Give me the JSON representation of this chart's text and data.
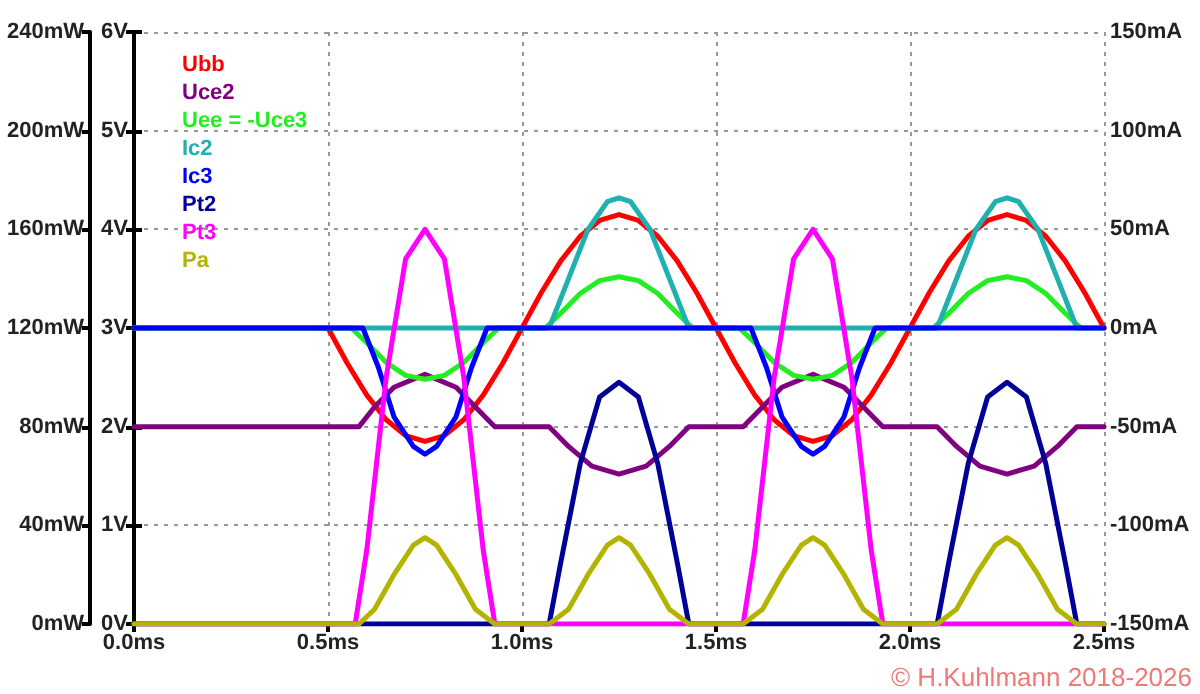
{
  "chart_data": {
    "type": "line",
    "legend": "top left",
    "grid": true,
    "marker": "none",
    "line_style": "solid",
    "xlim": [
      0,
      2.5
    ],
    "xticks": [
      {
        "value": 0,
        "label": "0.0ms"
      },
      {
        "value": 0.5,
        "label": "0.5ms"
      },
      {
        "value": 1,
        "label": "1.0ms"
      },
      {
        "value": 1.5,
        "label": "1.5ms"
      },
      {
        "value": 2,
        "label": "2.0ms"
      },
      {
        "value": 2.5,
        "label": "2.5ms"
      }
    ],
    "ylim": [
      0,
      6
    ],
    "yticks": [
      {
        "value": 0,
        "label": "0V"
      },
      {
        "value": 1,
        "label": "1V"
      },
      {
        "value": 2,
        "label": "2V"
      },
      {
        "value": 3,
        "label": "3V"
      },
      {
        "value": 4,
        "label": "4V"
      },
      {
        "value": 5,
        "label": "5V"
      },
      {
        "value": 6,
        "label": "6V"
      }
    ],
    "y2lim": [
      -150,
      150
    ],
    "y2ticks": [
      {
        "value": -150,
        "label": "-150mA"
      },
      {
        "value": -100,
        "label": "-100mA"
      },
      {
        "value": -50,
        "label": "-50mA"
      },
      {
        "value": 0,
        "label": "0mA"
      },
      {
        "value": 50,
        "label": "50mA"
      },
      {
        "value": 100,
        "label": "100mA"
      },
      {
        "value": 150,
        "label": "150mA"
      }
    ],
    "y3lim": [
      0,
      240
    ],
    "y3ticks": [
      {
        "value": 0,
        "label": "0mW"
      },
      {
        "value": 40,
        "label": "40mW"
      },
      {
        "value": 80,
        "label": "80mW"
      },
      {
        "value": 120,
        "label": "120mW"
      },
      {
        "value": 160,
        "label": "160mW"
      },
      {
        "value": 200,
        "label": "200mW"
      },
      {
        "value": 240,
        "label": "240mW"
      }
    ],
    "annotations": [
      "© H.Kuhlmann 2018-2026"
    ],
    "series": [
      {
        "name": "Ubb",
        "color": "#ff0000",
        "x": [
          0,
          0.5,
          0.55,
          0.6,
          0.65,
          0.7,
          0.75,
          0.8,
          0.85,
          0.9,
          0.95,
          1.0,
          1.05,
          1.1,
          1.15,
          1.2,
          1.25,
          1.3,
          1.35,
          1.4,
          1.45,
          1.5,
          1.55,
          1.6,
          1.65,
          1.7,
          1.75,
          1.8,
          1.85,
          1.9,
          1.95,
          2.0,
          2.05,
          2.1,
          2.15,
          2.2,
          2.25,
          2.3,
          2.35,
          2.4,
          2.45,
          2.5
        ],
        "values": [
          3,
          3,
          2.64,
          2.32,
          2.07,
          1.91,
          1.85,
          1.91,
          2.07,
          2.32,
          2.64,
          3,
          3.36,
          3.68,
          3.93,
          4.09,
          4.15,
          4.09,
          3.93,
          3.68,
          3.36,
          3,
          2.64,
          2.32,
          2.07,
          1.91,
          1.85,
          1.91,
          2.07,
          2.32,
          2.64,
          3,
          3.36,
          3.68,
          3.93,
          4.09,
          4.15,
          4.09,
          3.93,
          3.68,
          3.36,
          3
        ]
      },
      {
        "name": "Uce2",
        "color": "#800080",
        "x": [
          0,
          0.58,
          0.62,
          0.67,
          0.75,
          0.83,
          0.88,
          0.93,
          1.07,
          1.12,
          1.18,
          1.25,
          1.32,
          1.38,
          1.43,
          1.57,
          1.62,
          1.67,
          1.75,
          1.83,
          1.88,
          1.93,
          2.07,
          2.12,
          2.18,
          2.25,
          2.32,
          2.38,
          2.43,
          2.5
        ],
        "values": [
          2,
          2,
          2.2,
          2.4,
          2.53,
          2.4,
          2.2,
          2,
          2,
          1.8,
          1.6,
          1.52,
          1.6,
          1.8,
          2,
          2,
          2.2,
          2.4,
          2.53,
          2.4,
          2.2,
          2,
          2,
          1.8,
          1.6,
          1.52,
          1.6,
          1.8,
          2,
          2
        ]
      },
      {
        "name": "Uee = -Uce3",
        "color": "#22ee22",
        "x": [
          0,
          0.56,
          0.6,
          0.65,
          0.7,
          0.75,
          0.8,
          0.85,
          0.9,
          0.94,
          1.06,
          1.1,
          1.15,
          1.2,
          1.25,
          1.3,
          1.35,
          1.4,
          1.44,
          1.56,
          1.6,
          1.65,
          1.7,
          1.75,
          1.8,
          1.85,
          1.9,
          1.94,
          2.06,
          2.1,
          2.15,
          2.2,
          2.25,
          2.3,
          2.35,
          2.4,
          2.44
        ],
        "values": [
          3,
          3,
          2.85,
          2.65,
          2.52,
          2.48,
          2.52,
          2.65,
          2.85,
          3,
          3,
          3.15,
          3.35,
          3.48,
          3.52,
          3.48,
          3.35,
          3.15,
          3,
          3,
          2.85,
          2.65,
          2.52,
          2.48,
          2.52,
          2.65,
          2.85,
          3,
          3,
          3.15,
          3.35,
          3.48,
          3.52,
          3.48,
          3.35,
          3.15,
          3
        ]
      },
      {
        "name": "Ic2",
        "color": "#20b0b0",
        "axis": "y2",
        "x": [
          0,
          1.07,
          1.12,
          1.17,
          1.22,
          1.25,
          1.28,
          1.33,
          1.38,
          1.43,
          2.07,
          2.12,
          2.17,
          2.22,
          2.25,
          2.28,
          2.33,
          2.38,
          2.43,
          2.5
        ],
        "values": [
          0,
          0,
          25,
          50,
          64,
          66,
          64,
          50,
          25,
          0,
          0,
          25,
          50,
          64,
          66,
          64,
          50,
          25,
          0,
          0
        ]
      },
      {
        "name": "Ic3",
        "color": "#0000ff",
        "axis": "y2",
        "x": [
          0,
          0.59,
          0.63,
          0.67,
          0.72,
          0.75,
          0.78,
          0.83,
          0.87,
          0.91,
          1.59,
          1.63,
          1.67,
          1.72,
          1.75,
          1.78,
          1.83,
          1.87,
          1.91,
          2.5
        ],
        "values": [
          0,
          0,
          -20,
          -45,
          -60,
          -64,
          -60,
          -45,
          -20,
          0,
          0,
          -20,
          -45,
          -60,
          -64,
          -60,
          -45,
          -20,
          0,
          0
        ]
      },
      {
        "name": "Pt2",
        "color": "#000099",
        "axis": "y3",
        "x": [
          0,
          1.07,
          1.1,
          1.15,
          1.2,
          1.25,
          1.3,
          1.35,
          1.4,
          1.43,
          2.07,
          2.1,
          2.15,
          2.2,
          2.25,
          2.3,
          2.35,
          2.4,
          2.43,
          2.5
        ],
        "values": [
          0,
          0,
          25,
          65,
          92,
          98,
          92,
          65,
          25,
          0,
          0,
          25,
          65,
          92,
          98,
          92,
          65,
          25,
          0,
          0
        ]
      },
      {
        "name": "Pt3",
        "color": "#ff00ff",
        "axis": "y3",
        "x": [
          0,
          0.57,
          0.6,
          0.65,
          0.7,
          0.75,
          0.8,
          0.85,
          0.9,
          0.93,
          1.57,
          1.6,
          1.65,
          1.7,
          1.75,
          1.8,
          1.85,
          1.9,
          1.93,
          2.5
        ],
        "values": [
          0,
          0,
          30,
          100,
          148,
          160,
          148,
          100,
          30,
          0,
          0,
          30,
          100,
          148,
          160,
          148,
          100,
          30,
          0,
          0
        ]
      },
      {
        "name": "Pa",
        "color": "#b3b300",
        "axis": "y3",
        "x": [
          0,
          0.58,
          0.62,
          0.67,
          0.72,
          0.75,
          0.78,
          0.83,
          0.88,
          0.93,
          1.07,
          1.12,
          1.17,
          1.22,
          1.25,
          1.28,
          1.33,
          1.38,
          1.43,
          1.57,
          1.62,
          1.67,
          1.72,
          1.75,
          1.78,
          1.83,
          1.88,
          1.93,
          2.07,
          2.12,
          2.17,
          2.22,
          2.25,
          2.28,
          2.33,
          2.38,
          2.43,
          2.5
        ],
        "values": [
          0,
          0,
          6,
          20,
          32,
          35,
          32,
          20,
          6,
          0,
          0,
          6,
          20,
          32,
          35,
          32,
          20,
          6,
          0,
          0,
          6,
          20,
          32,
          35,
          32,
          20,
          6,
          0,
          0,
          6,
          20,
          32,
          35,
          32,
          20,
          6,
          0,
          0
        ]
      }
    ]
  }
}
